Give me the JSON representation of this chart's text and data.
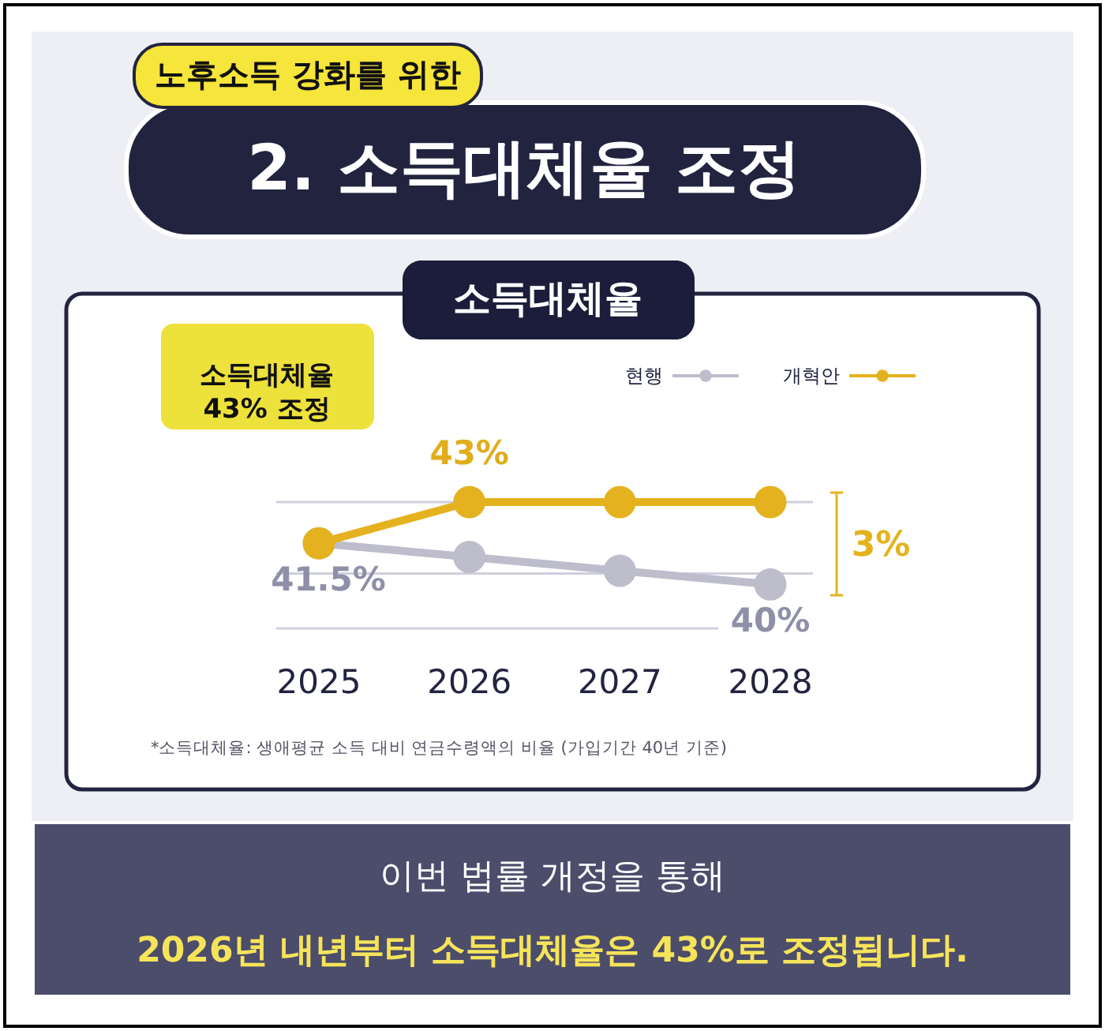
{
  "chart_data": {
    "type": "line",
    "subtitle": "노후소득 강화를 위한",
    "title": "2. 소득대체율 조정",
    "categories": [
      "2025",
      "2026",
      "2027",
      "2028"
    ],
    "series": [
      {
        "name": "현행",
        "color": "#bdbdcc",
        "values": [
          41.5,
          41,
          40.5,
          40
        ],
        "value_labels": [
          "41.5%",
          null,
          null,
          "40%"
        ]
      },
      {
        "name": "개혁안",
        "color": "#e5b21f",
        "values": [
          41.5,
          43,
          43,
          43
        ],
        "value_labels": [
          null,
          "43%",
          null,
          null
        ]
      }
    ],
    "ylim": [
      38.4,
      43
    ],
    "tick_labels": "x",
    "ref_lines": [
      {
        "axis": "y",
        "value": 43,
        "color": "#cfcfe0"
      },
      {
        "axis": "y",
        "value": 40.4,
        "color": "#cfcfe0"
      }
    ],
    "marker": "circle",
    "legend": "top right",
    "annotations": [
      "소득대체율",
      "소득대체율\n43% 조정",
      "3%",
      "*소득대체율: 생애평균 소득 대비 연금수령액의 비율 (가입기간 40년 기준)",
      "이번 법률 개정을 통해",
      "2026년 내년부터 소득대체율은 43%로 조정됩니다."
    ]
  }
}
